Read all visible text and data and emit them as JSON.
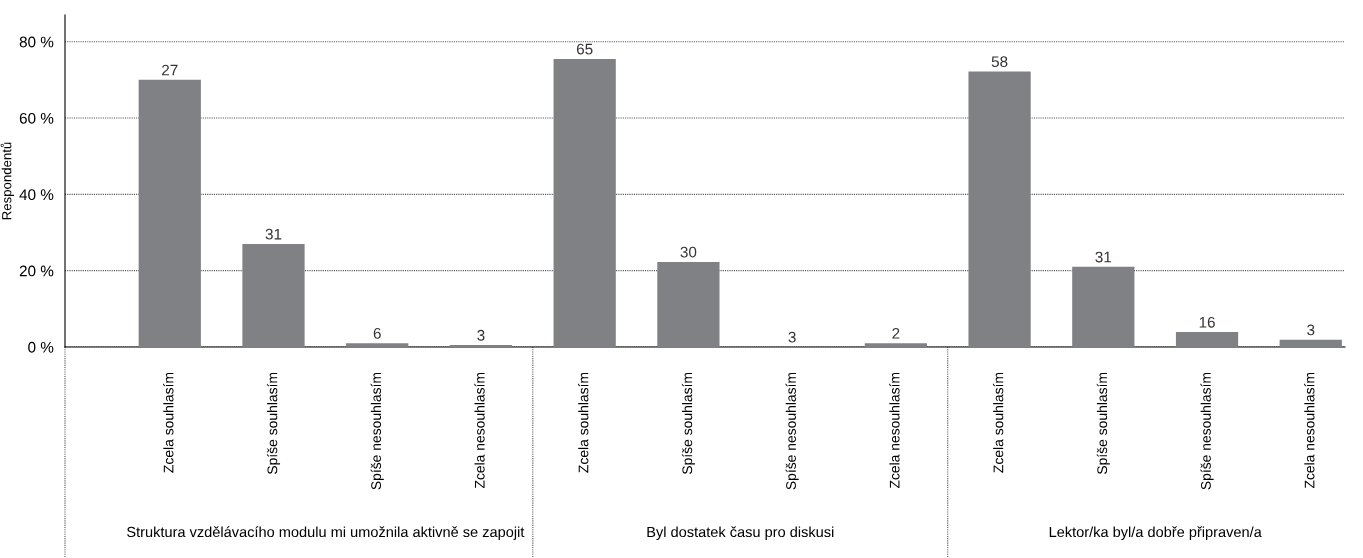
{
  "chart_data": {
    "type": "bar",
    "ylabel": "Respondentů",
    "categories": [
      "Zcela souhlasím",
      "Spíše souhlasím",
      "Spíše nesouhlasím",
      "Zcela nesouhlasím",
      "Zcela souhlasím",
      "Spíše souhlasím",
      "Spíše nesouhlasím",
      "Zcela nesouhlasím",
      "Zcela souhlasím",
      "Spíše souhlasím",
      "Spíše nesouhlasím",
      "Zcela nesouhlasím"
    ],
    "values": [
      70,
      27,
      1,
      0.5,
      75.5,
      22.3,
      0,
      1,
      72.2,
      21,
      3.9,
      1.9
    ],
    "color": "#808184",
    "annotations": [
      "Struktura vzdělávacího modulu mi umožnila aktivně se zapojit",
      "Byl dostatek času pro diskusi",
      "Lektor/ka byl/a dobře připraven/a",
      {
        "text": "27",
        "y": 70
      },
      {
        "text": "31",
        "y": 27
      },
      {
        "text": "6",
        "y": 1
      },
      {
        "text": "3",
        "y": 0.5
      },
      {
        "text": "65",
        "y": 75.5
      },
      {
        "text": "30",
        "y": 22.3
      },
      {
        "text": "3",
        "y": 0
      },
      {
        "text": "2",
        "y": 1
      },
      {
        "text": "58",
        "y": 72.2
      },
      {
        "text": "31",
        "y": 21
      },
      {
        "text": "16",
        "y": 3.9
      },
      {
        "text": "3",
        "y": 1.9
      }
    ],
    "ylim": [
      0,
      87
    ],
    "yticks": [
      {
        "value": 0,
        "label": "0 %"
      },
      {
        "value": 20,
        "label": "20 %"
      },
      {
        "value": 40,
        "label": "40 %"
      },
      {
        "value": 60,
        "label": "60 %"
      },
      {
        "value": 80,
        "label": "80 %"
      }
    ],
    "grid": "y"
  }
}
